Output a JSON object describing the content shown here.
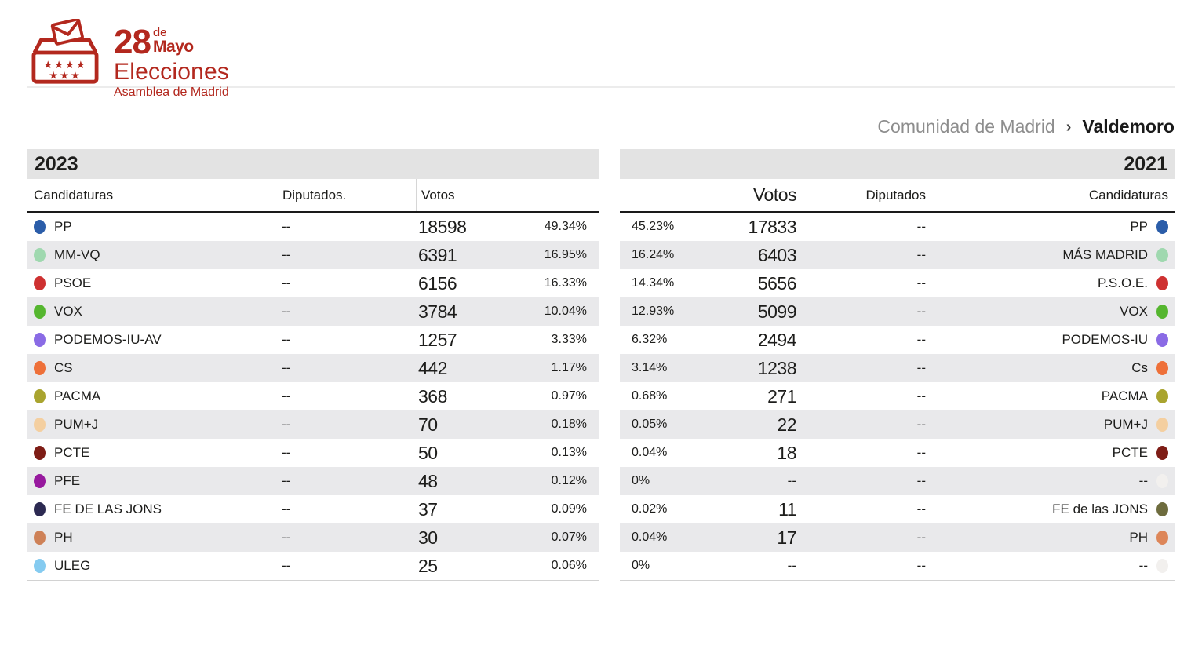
{
  "logo": {
    "day": "28",
    "de": "de",
    "month": "Mayo",
    "title": "Elecciones",
    "subtitle": "Asamblea de Madrid",
    "color": "#B3281E"
  },
  "breadcrumb": {
    "parent": "Comunidad de Madrid",
    "separator": "›",
    "current": "Valdemoro"
  },
  "tables": {
    "left": {
      "year": "2023",
      "headers": {
        "candidaturas": "Candidaturas",
        "diputados": "Diputados.",
        "votos": "Votos"
      },
      "rows": [
        {
          "party": "PP",
          "color": "#2B5DA9",
          "diputados": "--",
          "votos": "18598",
          "pct": "49.34%"
        },
        {
          "party": "MM-VQ",
          "color": "#9FD8AF",
          "diputados": "--",
          "votos": "6391",
          "pct": "16.95%"
        },
        {
          "party": "PSOE",
          "color": "#CE3131",
          "diputados": "--",
          "votos": "6156",
          "pct": "16.33%"
        },
        {
          "party": "VOX",
          "color": "#55B62F",
          "diputados": "--",
          "votos": "3784",
          "pct": "10.04%"
        },
        {
          "party": "PODEMOS-IU-AV",
          "color": "#8A6BE5",
          "diputados": "--",
          "votos": "1257",
          "pct": "3.33%"
        },
        {
          "party": "CS",
          "color": "#EE7039",
          "diputados": "--",
          "votos": "442",
          "pct": "1.17%"
        },
        {
          "party": "PACMA",
          "color": "#A9A42F",
          "diputados": "--",
          "votos": "368",
          "pct": "0.97%"
        },
        {
          "party": "PUM+J",
          "color": "#F4CFA0",
          "diputados": "--",
          "votos": "70",
          "pct": "0.18%"
        },
        {
          "party": "PCTE",
          "color": "#7E1D16",
          "diputados": "--",
          "votos": "50",
          "pct": "0.13%"
        },
        {
          "party": "PFE",
          "color": "#97199E",
          "diputados": "--",
          "votos": "48",
          "pct": "0.12%"
        },
        {
          "party": "FE DE LAS JONS",
          "color": "#2C2A52",
          "diputados": "--",
          "votos": "37",
          "pct": "0.09%"
        },
        {
          "party": "PH",
          "color": "#CE8157",
          "diputados": "--",
          "votos": "30",
          "pct": "0.07%"
        },
        {
          "party": "ULEG",
          "color": "#85CBF0",
          "diputados": "--",
          "votos": "25",
          "pct": "0.06%"
        }
      ]
    },
    "right": {
      "year": "2021",
      "headers": {
        "votos": "Votos",
        "diputados": "Diputados",
        "candidaturas": "Candidaturas"
      },
      "rows": [
        {
          "pct": "45.23%",
          "votos": "17833",
          "diputados": "--",
          "party": "PP",
          "color": "#2B5DA9"
        },
        {
          "pct": "16.24%",
          "votos": "6403",
          "diputados": "--",
          "party": "MÁS MADRID",
          "color": "#9FD8AF"
        },
        {
          "pct": "14.34%",
          "votos": "5656",
          "diputados": "--",
          "party": "P.S.O.E.",
          "color": "#CE3131"
        },
        {
          "pct": "12.93%",
          "votos": "5099",
          "diputados": "--",
          "party": "VOX",
          "color": "#55B62F"
        },
        {
          "pct": "6.32%",
          "votos": "2494",
          "diputados": "--",
          "party": "PODEMOS-IU",
          "color": "#8A6BE5"
        },
        {
          "pct": "3.14%",
          "votos": "1238",
          "diputados": "--",
          "party": "Cs",
          "color": "#EE7039"
        },
        {
          "pct": "0.68%",
          "votos": "271",
          "diputados": "--",
          "party": "PACMA",
          "color": "#A9A42F"
        },
        {
          "pct": "0.05%",
          "votos": "22",
          "diputados": "--",
          "party": "PUM+J",
          "color": "#F4CFA0"
        },
        {
          "pct": "0.04%",
          "votos": "18",
          "diputados": "--",
          "party": "PCTE",
          "color": "#7E1D16"
        },
        {
          "pct": "0%",
          "votos": "--",
          "diputados": "--",
          "party": "--",
          "color": "#F2F0EE"
        },
        {
          "pct": "0.02%",
          "votos": "11",
          "diputados": "--",
          "party": "FE de las JONS",
          "color": "#6E6C3E"
        },
        {
          "pct": "0.04%",
          "votos": "17",
          "diputados": "--",
          "party": "PH",
          "color": "#DD8659"
        },
        {
          "pct": "0%",
          "votos": "--",
          "diputados": "--",
          "party": "--",
          "color": "#F2F0EE"
        }
      ]
    }
  }
}
